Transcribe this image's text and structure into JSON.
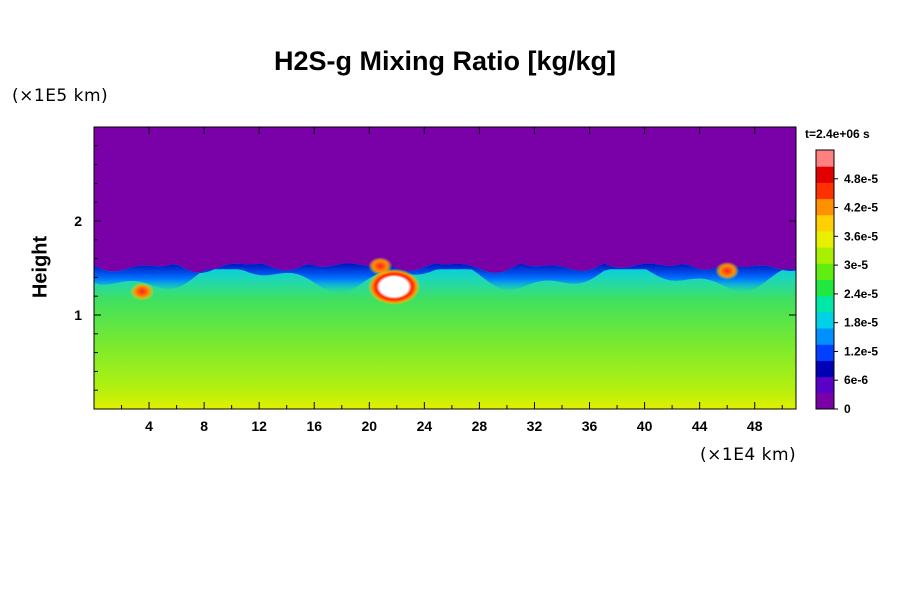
{
  "chart_data": {
    "type": "heatmap",
    "title": "H2S-g Mixing Ratio [kg/kg]",
    "ylabel": "Height",
    "xunit_label": "(×1E4 km)",
    "yunit_label": "(×1E5 km)",
    "time_label": "t=2.4e+06 s",
    "xlim": [
      0,
      51
    ],
    "ylim": [
      0,
      3.0
    ],
    "x_ticks": [
      "4",
      "8",
      "12",
      "16",
      "20",
      "24",
      "28",
      "32",
      "36",
      "40",
      "44",
      "48"
    ],
    "y_ticks": [
      "1",
      "2"
    ],
    "colorbar": {
      "range": [
        0,
        5.4e-05
      ],
      "labels": [
        "0",
        "6e-6",
        "1.2e-5",
        "1.8e-5",
        "2.4e-5",
        "3e-5",
        "3.6e-5",
        "4.2e-5",
        "4.8e-5"
      ],
      "colors": [
        "#7a00a8",
        "#5a00c8",
        "#0000b4",
        "#0040ff",
        "#0090ff",
        "#00d0e8",
        "#00e8a8",
        "#20e840",
        "#60ee10",
        "#a8f000",
        "#e8f000",
        "#ffd000",
        "#ff9000",
        "#ff3000",
        "#e00000",
        "#ff8080"
      ]
    },
    "field": {
      "background_value": 0,
      "mixed_layer_top": 1.55,
      "surface_value": 3.3e-05,
      "upper_mixed_value": 2.6e-05,
      "hotspots": [
        {
          "x": 3.5,
          "y": 1.25,
          "value": 4.8e-05
        },
        {
          "x": 21.8,
          "y": 1.3,
          "value": 5.4e-05
        },
        {
          "x": 20.8,
          "y": 1.52,
          "value": 4.8e-05
        },
        {
          "x": 46.0,
          "y": 1.47,
          "value": 4.8e-05
        }
      ]
    }
  }
}
